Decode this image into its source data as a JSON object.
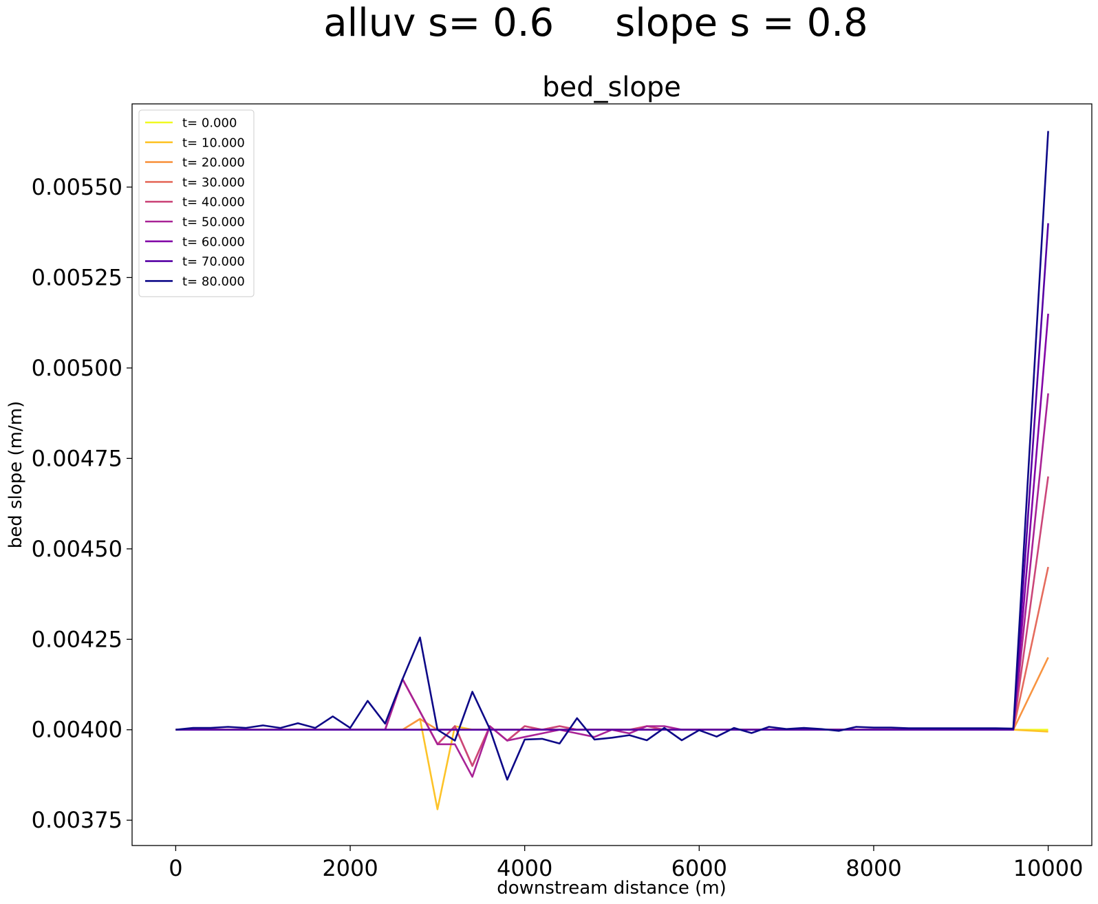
{
  "suptitle": "alluv s= 0.6     slope s = 0.8",
  "chart_data": {
    "type": "line",
    "title": "bed_slope",
    "xlabel": "downstream distance (m)",
    "ylabel": "bed slope (m/m)",
    "xlim": [
      -500,
      10500
    ],
    "ylim": [
      0.00368,
      0.00573
    ],
    "xticks": [
      0,
      2000,
      4000,
      6000,
      8000,
      10000
    ],
    "xtick_labels": [
      "0",
      "2000",
      "4000",
      "6000",
      "8000",
      "10000"
    ],
    "yticks": [
      0.00375,
      0.004,
      0.00425,
      0.0045,
      0.00475,
      0.005,
      0.00525,
      0.0055
    ],
    "ytick_labels": [
      "0.00375",
      "0.00400",
      "0.00425",
      "0.00450",
      "0.00475",
      "0.00500",
      "0.00525",
      "0.00550"
    ],
    "grid": false,
    "legend_position": "top-left",
    "x": [
      0,
      200,
      400,
      600,
      800,
      1000,
      1200,
      1400,
      1600,
      1800,
      2000,
      2200,
      2400,
      2600,
      2800,
      3000,
      3200,
      3400,
      3600,
      3800,
      4000,
      4200,
      4400,
      4600,
      4800,
      5000,
      5200,
      5400,
      5600,
      5800,
      6000,
      6200,
      6400,
      6600,
      6800,
      7000,
      7200,
      7400,
      7600,
      7800,
      8000,
      8200,
      8400,
      8600,
      8800,
      9000,
      9200,
      9400,
      9600,
      10000
    ],
    "series": [
      {
        "name": "t= 0.000",
        "color": "#f0f921",
        "values": [
          0.004,
          0.004,
          0.004,
          0.004,
          0.004,
          0.004,
          0.004,
          0.004,
          0.004,
          0.004,
          0.004,
          0.004,
          0.004,
          0.004,
          0.004,
          0.004,
          0.004,
          0.004,
          0.004,
          0.004,
          0.004,
          0.004,
          0.004,
          0.004,
          0.004,
          0.004,
          0.004,
          0.004,
          0.004,
          0.004,
          0.004,
          0.004,
          0.004,
          0.004,
          0.004,
          0.004,
          0.004,
          0.004,
          0.004,
          0.004,
          0.004,
          0.004,
          0.004,
          0.004,
          0.004,
          0.004,
          0.004,
          0.004,
          0.004,
          0.004
        ]
      },
      {
        "name": "t= 10.000",
        "color": "#fdc328",
        "values": [
          0.004,
          0.004,
          0.004,
          0.004,
          0.004,
          0.004,
          0.004,
          0.004,
          0.004,
          0.004,
          0.004,
          0.004,
          0.004,
          0.004,
          0.00403,
          0.00378,
          0.00401,
          0.004,
          0.004,
          0.004,
          0.004,
          0.004,
          0.004,
          0.004,
          0.004,
          0.004,
          0.004,
          0.004,
          0.004,
          0.004,
          0.004,
          0.004,
          0.004,
          0.004,
          0.004,
          0.004,
          0.004,
          0.004,
          0.004,
          0.004,
          0.004,
          0.004,
          0.004,
          0.004,
          0.004,
          0.004,
          0.004,
          0.004,
          0.004,
          0.003995
        ]
      },
      {
        "name": "t= 20.000",
        "color": "#f89441",
        "values": [
          0.004,
          0.004,
          0.004,
          0.004,
          0.004,
          0.004,
          0.004,
          0.004,
          0.004,
          0.004,
          0.004,
          0.004,
          0.004,
          0.004,
          0.00403,
          0.004,
          0.004,
          0.004,
          0.004,
          0.004,
          0.004,
          0.004,
          0.004,
          0.004,
          0.004,
          0.004,
          0.004,
          0.004,
          0.004,
          0.004,
          0.004,
          0.004,
          0.004,
          0.004,
          0.004,
          0.004,
          0.004,
          0.004,
          0.004,
          0.004,
          0.004,
          0.004,
          0.004,
          0.004,
          0.004,
          0.004,
          0.004,
          0.004,
          0.004,
          0.0042
        ]
      },
      {
        "name": "t= 30.000",
        "color": "#e56b5d",
        "values": [
          0.004,
          0.004,
          0.004,
          0.004,
          0.004,
          0.004,
          0.004,
          0.004,
          0.004,
          0.004,
          0.004,
          0.004,
          0.004,
          0.00414,
          0.00405,
          0.00396,
          0.00401,
          0.0039,
          0.00401,
          0.00397,
          0.00401,
          0.004,
          0.00401,
          0.004,
          0.004,
          0.004,
          0.004,
          0.004,
          0.004,
          0.004,
          0.004,
          0.004,
          0.004,
          0.004,
          0.004,
          0.004,
          0.004,
          0.004,
          0.004,
          0.004,
          0.004,
          0.004,
          0.004,
          0.004,
          0.004,
          0.004,
          0.004,
          0.004,
          0.004,
          0.00445
        ]
      },
      {
        "name": "t= 40.000",
        "color": "#cb4679",
        "values": [
          0.004,
          0.004,
          0.004,
          0.004,
          0.004,
          0.004,
          0.004,
          0.004,
          0.004,
          0.004,
          0.004,
          0.004,
          0.004,
          0.00414,
          0.00405,
          0.00396,
          0.00401,
          0.0039,
          0.00401,
          0.00397,
          0.00401,
          0.004,
          0.00401,
          0.004,
          0.004,
          0.004,
          0.004,
          0.00401,
          0.004,
          0.004,
          0.004,
          0.004,
          0.004,
          0.004,
          0.004,
          0.004,
          0.004,
          0.004,
          0.004,
          0.004,
          0.004,
          0.004,
          0.004,
          0.004,
          0.004,
          0.004,
          0.004,
          0.004,
          0.004,
          0.0047
        ]
      },
      {
        "name": "t= 50.000",
        "color": "#a82296",
        "values": [
          0.004,
          0.004,
          0.004,
          0.004,
          0.004,
          0.004,
          0.004,
          0.004,
          0.004,
          0.004,
          0.004,
          0.004,
          0.004,
          0.00414,
          0.00405,
          0.00396,
          0.00396,
          0.00387,
          0.00401,
          0.00397,
          0.00398,
          0.00399,
          0.004,
          0.00399,
          0.00398,
          0.004,
          0.00399,
          0.00401,
          0.00401,
          0.004,
          0.004,
          0.004,
          0.004,
          0.004,
          0.004,
          0.004,
          0.004,
          0.004,
          0.004,
          0.004,
          0.004,
          0.004,
          0.004,
          0.004,
          0.004,
          0.004,
          0.004,
          0.004,
          0.004,
          0.00493
        ]
      },
      {
        "name": "t= 60.000",
        "color": "#8305a7",
        "values": [
          0.004,
          0.004,
          0.004,
          0.004,
          0.004,
          0.004,
          0.004,
          0.004,
          0.004,
          0.004,
          0.004,
          0.004,
          0.004,
          0.004,
          0.004,
          0.004,
          0.004,
          0.004,
          0.004,
          0.004,
          0.004,
          0.004,
          0.004,
          0.004,
          0.004,
          0.004,
          0.004,
          0.004,
          0.004,
          0.004,
          0.004,
          0.004,
          0.004,
          0.004,
          0.004,
          0.004,
          0.004,
          0.004,
          0.004,
          0.004,
          0.004,
          0.004,
          0.004,
          0.004,
          0.004,
          0.004,
          0.004,
          0.004,
          0.004,
          0.00515
        ]
      },
      {
        "name": "t= 70.000",
        "color": "#5601a4",
        "values": [
          0.004,
          0.004,
          0.004,
          0.004,
          0.004,
          0.004,
          0.004,
          0.004,
          0.004,
          0.004,
          0.004,
          0.004,
          0.004,
          0.004,
          0.004,
          0.004,
          0.004,
          0.004,
          0.004,
          0.004,
          0.004,
          0.004,
          0.004,
          0.004,
          0.004,
          0.004,
          0.004,
          0.004,
          0.004,
          0.004,
          0.004,
          0.004,
          0.004,
          0.004,
          0.004,
          0.004,
          0.004,
          0.004,
          0.004,
          0.004,
          0.004,
          0.004,
          0.004,
          0.004,
          0.004,
          0.004,
          0.004,
          0.004,
          0.004,
          0.0054
        ]
      },
      {
        "name": "t= 80.000",
        "color": "#0d0887",
        "values": [
          0.004,
          0.004005,
          0.004005,
          0.004008,
          0.004005,
          0.004012,
          0.004005,
          0.004018,
          0.004005,
          0.004037,
          0.004005,
          0.00408,
          0.004017,
          0.00414,
          0.004255,
          0.004,
          0.00397,
          0.004105,
          0.004002,
          0.003862,
          0.003973,
          0.003975,
          0.003962,
          0.004032,
          0.003973,
          0.003978,
          0.003985,
          0.003971,
          0.004005,
          0.003971,
          0.003999,
          0.003981,
          0.004005,
          0.003991,
          0.004008,
          0.004002,
          0.004005,
          0.004002,
          0.003997,
          0.004008,
          0.004006,
          0.004006,
          0.004004,
          0.004004,
          0.004004,
          0.004004,
          0.004004,
          0.004004,
          0.004003,
          0.005655
        ]
      }
    ]
  }
}
